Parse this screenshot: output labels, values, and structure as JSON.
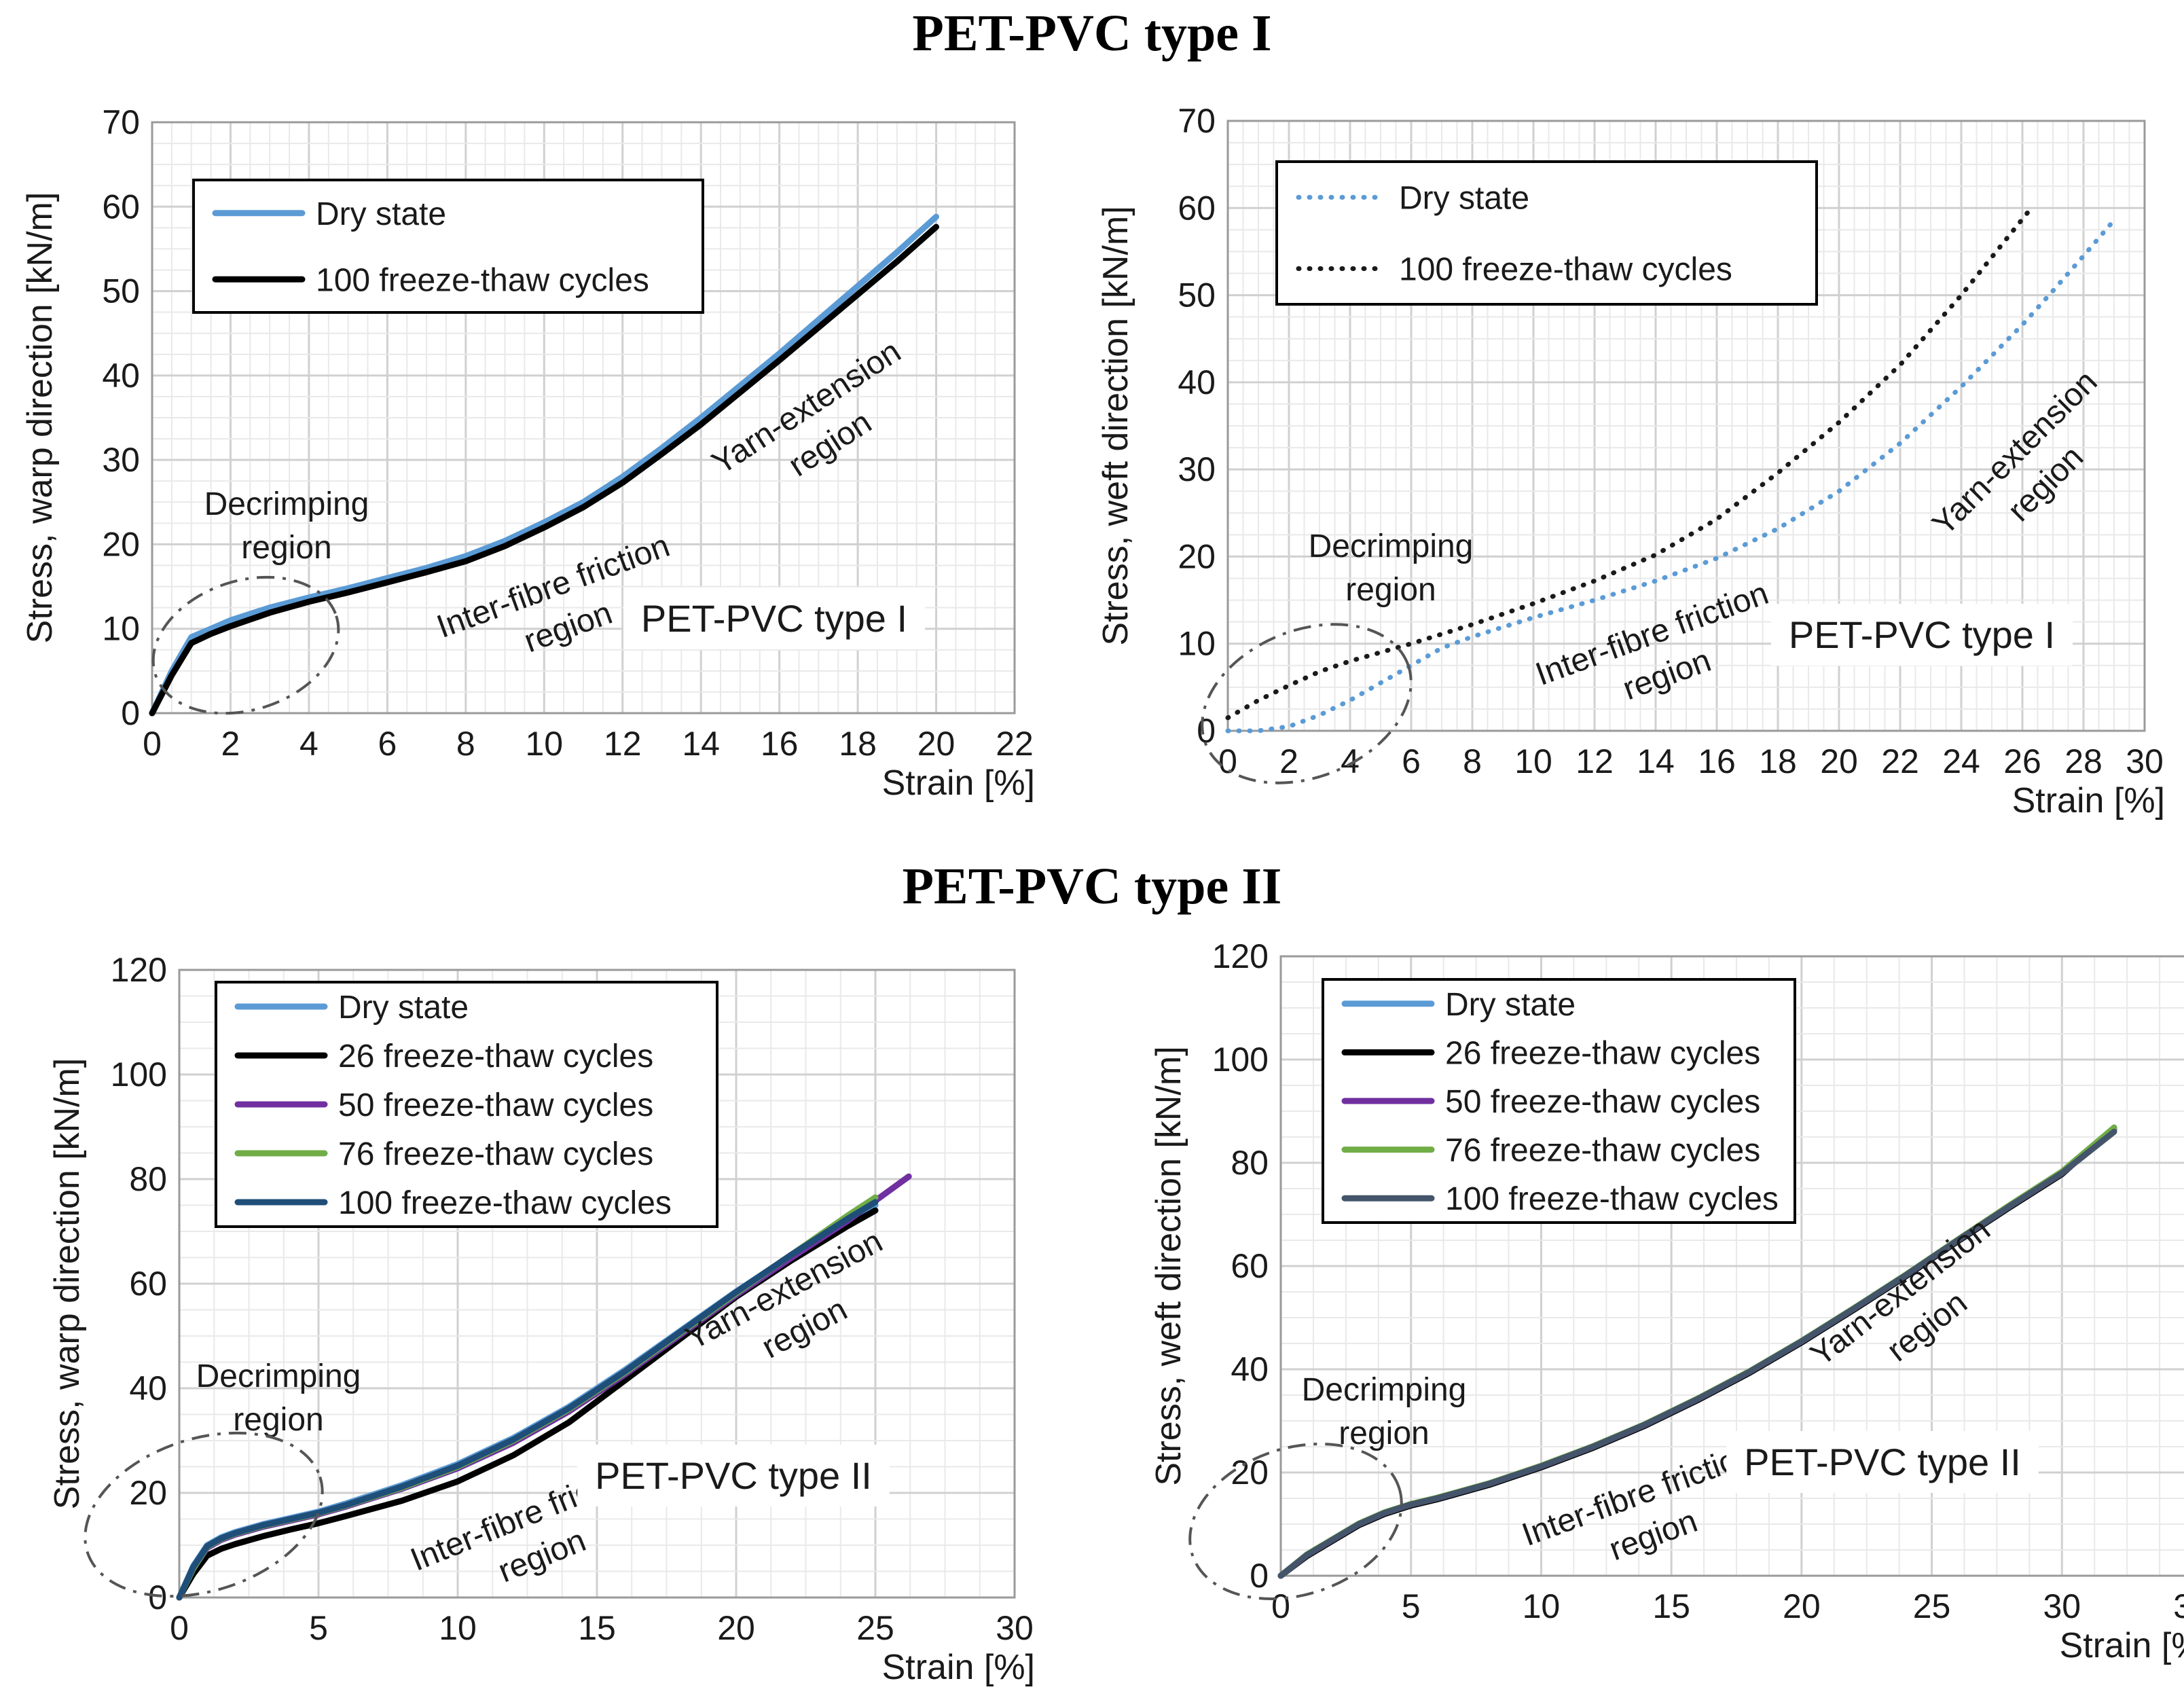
{
  "titles": {
    "top": "PET-PVC type I",
    "bottom": "PET-PVC type II"
  },
  "chart_data": [
    {
      "type": "line",
      "xlabel": "Strain [%]",
      "ylabel": "Stress, warp direction [kN/m]",
      "xlim": [
        0,
        22
      ],
      "ylim": [
        0,
        70
      ],
      "xstep": 2,
      "ystep": 10,
      "grid": true,
      "legend": "top-left",
      "panel_label": "PET-PVC  type I",
      "region_labels": {
        "decrimping": [
          "Decrimping",
          "region"
        ],
        "friction": [
          "Inter-fibre friction",
          "region"
        ],
        "extension": [
          "Yarn-extension",
          "region"
        ]
      },
      "series": [
        {
          "name": "Dry state",
          "color": "#5B9BD5",
          "style": "solid",
          "x": [
            0,
            0.5,
            1,
            1.5,
            2,
            3,
            4,
            5,
            6,
            7,
            8,
            9,
            10,
            11,
            12,
            13,
            14,
            15,
            16,
            17,
            18,
            19,
            20
          ],
          "y": [
            0,
            5,
            9,
            10,
            11,
            12.5,
            13.7,
            14.8,
            16,
            17.2,
            18.6,
            20.4,
            22.6,
            25,
            28,
            31.4,
            35,
            38.8,
            42.6,
            46.6,
            50.6,
            54.6,
            58.8
          ]
        },
        {
          "name": "100 freeze-thaw cycles",
          "color": "#000000",
          "style": "solid",
          "x": [
            0,
            0.5,
            1,
            1.5,
            2,
            3,
            4,
            5,
            6,
            7,
            8,
            9,
            10,
            11,
            12,
            13,
            14,
            15,
            16,
            17,
            18,
            19,
            20
          ],
          "y": [
            0,
            4.5,
            8.3,
            9.4,
            10.3,
            11.9,
            13.2,
            14.3,
            15.5,
            16.7,
            18,
            19.8,
            22,
            24.4,
            27.3,
            30.7,
            34.2,
            38,
            41.8,
            45.7,
            49.6,
            53.5,
            57.6
          ]
        }
      ]
    },
    {
      "type": "line",
      "xlabel": "Strain [%]",
      "ylabel": "Stress, weft direction [kN/m]",
      "xlim": [
        0,
        30
      ],
      "ylim": [
        0,
        70
      ],
      "xstep": 2,
      "ystep": 10,
      "grid": true,
      "legend": "top-left",
      "panel_label": "PET-PVC  type I",
      "region_labels": {
        "decrimping": [
          "Decrimping",
          "region"
        ],
        "friction": [
          "Inter-fibre friction",
          "region"
        ],
        "extension": [
          "Yarn-extension",
          "region"
        ]
      },
      "series": [
        {
          "name": "Dry state",
          "color": "#5B9BD5",
          "style": "dotted",
          "x": [
            0,
            1,
            2,
            3,
            4,
            5,
            6,
            7,
            8,
            10,
            12,
            14,
            16,
            18,
            20,
            22,
            24,
            26,
            27,
            28,
            29
          ],
          "y": [
            0,
            0,
            0.5,
            1.8,
            3.5,
            5.5,
            7.5,
            9.5,
            10.8,
            13,
            15,
            17.2,
            19.8,
            23.2,
            27.5,
            33,
            39.5,
            46.6,
            50.5,
            54.5,
            58.6
          ]
        },
        {
          "name": "100 freeze-thaw cycles",
          "color": "#1a1a1a",
          "style": "dotted",
          "x": [
            0,
            1,
            2,
            3,
            4,
            5,
            6,
            8,
            10,
            12,
            14,
            16,
            18,
            20,
            22,
            24,
            26.2
          ],
          "y": [
            1.5,
            3.5,
            5.2,
            6.8,
            8,
            9,
            10,
            12.2,
            14.6,
            17.2,
            20.2,
            24.3,
            29.6,
            35.4,
            42,
            50,
            59.6
          ]
        }
      ]
    },
    {
      "type": "line",
      "xlabel": "Strain [%]",
      "ylabel": "Stress, warp direction [kN/m]",
      "xlim": [
        0,
        30
      ],
      "ylim": [
        0,
        120
      ],
      "xstep": 5,
      "ystep": 20,
      "grid": true,
      "legend": "top-left",
      "panel_label": "PET-PVC type II",
      "region_labels": {
        "decrimping": [
          "Decrimping",
          "region"
        ],
        "friction": [
          "Inter-fibre friction",
          "region"
        ],
        "extension": [
          "Yarn-extension",
          "region"
        ]
      },
      "series": [
        {
          "name": "Dry state",
          "color": "#5B9BD5",
          "style": "solid",
          "x": [
            0,
            0.5,
            1,
            1.5,
            2,
            3,
            4,
            5,
            6,
            8,
            10,
            12,
            14,
            16,
            18,
            20,
            22,
            24,
            25
          ],
          "y": [
            0,
            6,
            10,
            11.5,
            12.5,
            14,
            15.2,
            16.4,
            18,
            21.5,
            25.5,
            30.5,
            36.5,
            43.5,
            51,
            58.5,
            65.5,
            72,
            75
          ]
        },
        {
          "name": "26 freeze-thaw cycles",
          "color": "#000000",
          "style": "solid",
          "x": [
            0,
            0.5,
            1,
            1.5,
            2,
            3,
            4,
            5,
            6,
            8,
            10,
            12,
            14,
            16,
            18,
            20,
            22,
            24,
            25
          ],
          "y": [
            0,
            4.5,
            8,
            9.3,
            10.2,
            11.7,
            13,
            14.2,
            15.6,
            18.5,
            22.2,
            27.2,
            33.5,
            41.5,
            49.5,
            57.5,
            64.5,
            71,
            74
          ]
        },
        {
          "name": "50 freeze-thaw cycles",
          "color": "#7030A0",
          "style": "solid",
          "x": [
            0,
            0.5,
            1,
            1.5,
            2,
            3,
            4,
            5,
            6,
            8,
            10,
            12,
            14,
            16,
            18,
            20,
            22,
            24,
            26.2
          ],
          "y": [
            0,
            5.5,
            9.5,
            11,
            12,
            13.5,
            14.7,
            15.9,
            17.4,
            20.8,
            24.7,
            29.6,
            35.6,
            42.6,
            50.2,
            57.8,
            65,
            72,
            80.5
          ]
        },
        {
          "name": "76 freeze-thaw cycles",
          "color": "#70AD47",
          "style": "solid",
          "x": [
            0,
            0.5,
            1,
            1.5,
            2,
            3,
            4,
            5,
            6,
            8,
            10,
            12,
            14,
            16,
            18,
            20,
            22,
            24,
            25
          ],
          "y": [
            0,
            5.5,
            9.7,
            11.2,
            12.2,
            13.7,
            14.9,
            16.1,
            17.6,
            21,
            25,
            30,
            36,
            43,
            50.6,
            58.2,
            65.6,
            73,
            76.5
          ]
        },
        {
          "name": "100 freeze-thaw cycles",
          "color": "#1F4E79",
          "style": "solid",
          "x": [
            0,
            0.5,
            1,
            1.5,
            2,
            3,
            4,
            5,
            6,
            8,
            10,
            12,
            14,
            16,
            18,
            20,
            22,
            24,
            25
          ],
          "y": [
            0,
            5.8,
            9.8,
            11.3,
            12.3,
            13.8,
            15,
            16.2,
            17.7,
            21.2,
            25.2,
            30.2,
            36.2,
            43.2,
            50.8,
            58.4,
            65.6,
            72.4,
            75.6
          ]
        }
      ]
    },
    {
      "type": "line",
      "xlabel": "Strain [%]",
      "ylabel": "Stress, weft direction [kN/m]",
      "xlim": [
        0,
        35
      ],
      "ylim": [
        0,
        120
      ],
      "xstep": 5,
      "ystep": 20,
      "grid": true,
      "legend": "top-left",
      "panel_label": "PET-PVC type II",
      "region_labels": {
        "decrimping": [
          "Decrimping",
          "region"
        ],
        "friction": [
          "Inter-fibre friction",
          "region"
        ],
        "extension": [
          "Yarn-extension",
          "region"
        ]
      },
      "series": [
        {
          "name": "Dry state",
          "color": "#5B9BD5",
          "style": "solid",
          "x": [
            0,
            1,
            2,
            3,
            4,
            5,
            6,
            8,
            10,
            12,
            14,
            16,
            18,
            20,
            22,
            24,
            26,
            28,
            30,
            32
          ],
          "y": [
            0,
            4,
            7,
            10,
            12.2,
            13.8,
            15,
            17.8,
            21.2,
            25,
            29.3,
            34.2,
            39.5,
            45.4,
            51.7,
            58.2,
            65,
            71.6,
            78,
            86.5
          ]
        },
        {
          "name": "26 freeze-thaw cycles",
          "color": "#000000",
          "style": "solid",
          "x": [
            0,
            1,
            2,
            3,
            4,
            5,
            6,
            8,
            10,
            12,
            14,
            16,
            18,
            20,
            22,
            24,
            26,
            28,
            30,
            32
          ],
          "y": [
            0,
            3.8,
            6.8,
            9.8,
            12,
            13.6,
            14.8,
            17.6,
            21,
            24.8,
            29.1,
            34,
            39.3,
            45.2,
            51.5,
            58,
            64.8,
            71.4,
            77.8,
            86.8
          ]
        },
        {
          "name": "50 freeze-thaw cycles",
          "color": "#7030A0",
          "style": "solid",
          "x": [
            0,
            1,
            2,
            3,
            4,
            5,
            6,
            8,
            10,
            12,
            14,
            16,
            18,
            20,
            22,
            24,
            26,
            28,
            30,
            32
          ],
          "y": [
            0,
            4,
            7,
            10,
            12.2,
            13.8,
            15,
            17.8,
            21.2,
            25,
            29.3,
            34.2,
            39.5,
            45.4,
            51.7,
            58.2,
            65,
            71.6,
            78,
            86.3
          ]
        },
        {
          "name": "76 freeze-thaw cycles",
          "color": "#70AD47",
          "style": "solid",
          "x": [
            0,
            1,
            2,
            3,
            4,
            5,
            6,
            8,
            10,
            12,
            14,
            16,
            18,
            20,
            22,
            24,
            26,
            28,
            30,
            32
          ],
          "y": [
            0,
            4.1,
            7.1,
            10.1,
            12.3,
            13.9,
            15.1,
            17.9,
            21.3,
            25.1,
            29.4,
            34.3,
            39.6,
            45.5,
            51.8,
            58.3,
            65.1,
            71.8,
            78.3,
            86.8
          ]
        },
        {
          "name": "100 freeze-thaw cycles",
          "color": "#44546A",
          "style": "solid",
          "x": [
            0,
            1,
            2,
            3,
            4,
            5,
            6,
            8,
            10,
            12,
            14,
            16,
            18,
            20,
            22,
            24,
            26,
            28,
            30,
            32
          ],
          "y": [
            0,
            4,
            7,
            10,
            12.2,
            13.8,
            15,
            17.8,
            21.2,
            25,
            29.3,
            34.2,
            39.5,
            45.4,
            51.7,
            58.2,
            65,
            71.6,
            78,
            86
          ]
        }
      ]
    }
  ]
}
